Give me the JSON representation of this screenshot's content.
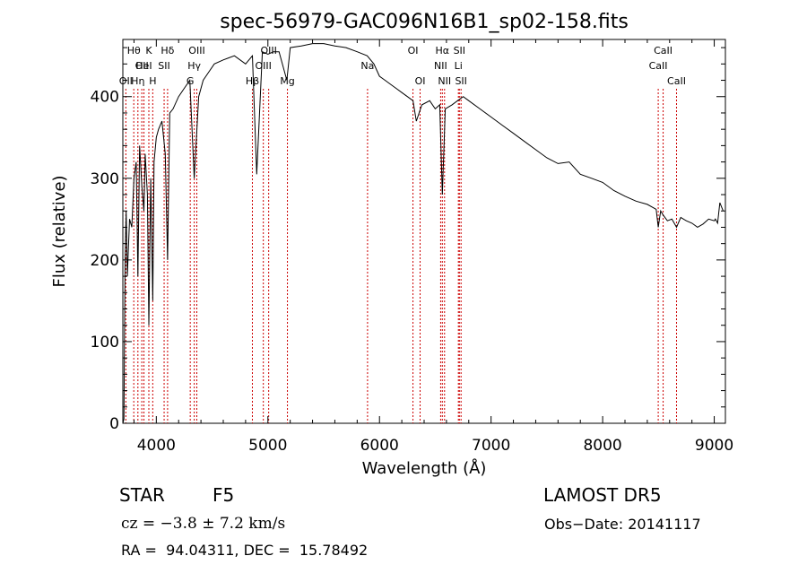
{
  "chart_data": {
    "type": "line",
    "title": "spec-56979-GAC096N16B1_sp02-158.fits",
    "xlabel": "Wavelength (Å)",
    "ylabel": "Flux (relative)",
    "xlim": [
      3700,
      9100
    ],
    "ylim": [
      0,
      470
    ],
    "xticks": [
      4000,
      5000,
      6000,
      7000,
      8000,
      9000
    ],
    "yticks": [
      0,
      100,
      200,
      300,
      400
    ],
    "x_tick_labels": [
      "4000",
      "5000",
      "6000",
      "7000",
      "8000",
      "9000"
    ],
    "y_tick_labels": [
      "0",
      "100",
      "200",
      "300",
      "400"
    ],
    "grid": false,
    "line_color": "#000000",
    "marker_color": "#cc0000",
    "series": [
      {
        "x": [
          3700,
          3710,
          3720,
          3730,
          3740,
          3760,
          3780,
          3800,
          3820,
          3835,
          3850,
          3870,
          3889,
          3900,
          3920,
          3933,
          3950,
          3968,
          3980,
          4000,
          4020,
          4050,
          4080,
          4101,
          4120,
          4150,
          4200,
          4250,
          4300,
          4340,
          4380,
          4420,
          4470,
          4520,
          4600,
          4700,
          4800,
          4861,
          4900,
          4950,
          5000,
          5050,
          5100,
          5170,
          5200,
          5300,
          5400,
          5500,
          5600,
          5700,
          5800,
          5890,
          5950,
          6000,
          6050,
          6100,
          6150,
          6200,
          6250,
          6300,
          6330,
          6380,
          6450,
          6500,
          6540,
          6563,
          6590,
          6650,
          6700,
          6750,
          6800,
          6900,
          7000,
          7100,
          7200,
          7300,
          7400,
          7500,
          7600,
          7700,
          7800,
          7900,
          8000,
          8100,
          8200,
          8300,
          8400,
          8480,
          8498,
          8520,
          8542,
          8580,
          8620,
          8662,
          8700,
          8750,
          8800,
          8850,
          8900,
          8950,
          9000,
          9010,
          9030,
          9050,
          9080
        ],
        "y": [
          0,
          5,
          200,
          260,
          180,
          250,
          240,
          300,
          320,
          180,
          340,
          290,
          260,
          330,
          280,
          120,
          300,
          150,
          320,
          350,
          360,
          370,
          330,
          200,
          380,
          385,
          400,
          410,
          420,
          300,
          400,
          420,
          430,
          440,
          445,
          450,
          440,
          450,
          305,
          455,
          452,
          455,
          455,
          420,
          460,
          462,
          465,
          465,
          462,
          460,
          455,
          450,
          440,
          425,
          420,
          415,
          410,
          405,
          400,
          395,
          370,
          390,
          395,
          385,
          390,
          280,
          385,
          390,
          395,
          400,
          395,
          385,
          375,
          365,
          355,
          345,
          335,
          325,
          318,
          320,
          305,
          300,
          295,
          285,
          278,
          272,
          268,
          262,
          240,
          260,
          255,
          248,
          250,
          240,
          252,
          248,
          245,
          240,
          244,
          250,
          248,
          250,
          245,
          270,
          260
        ]
      }
    ],
    "line_markers": [
      {
        "x": 3727,
        "label": "OII",
        "row": 2
      },
      {
        "x": 3798,
        "label": "Hθ",
        "row": 0
      },
      {
        "x": 3835,
        "label": "Hη",
        "row": 2
      },
      {
        "x": 3870,
        "label": "OII",
        "row": 1
      },
      {
        "x": 3889,
        "label": "HeI",
        "row": 1
      },
      {
        "x": 3933,
        "label": "K",
        "row": 0
      },
      {
        "x": 3968,
        "label": "H",
        "row": 2
      },
      {
        "x": 4070,
        "label": "SII",
        "row": 1
      },
      {
        "x": 4101,
        "label": "Hδ",
        "row": 0
      },
      {
        "x": 4304,
        "label": "G",
        "row": 2
      },
      {
        "x": 4340,
        "label": "Hγ",
        "row": 1
      },
      {
        "x": 4363,
        "label": "OIII",
        "row": 0
      },
      {
        "x": 4861,
        "label": "Hβ",
        "row": 2
      },
      {
        "x": 4959,
        "label": "OIII",
        "row": 1
      },
      {
        "x": 5007,
        "label": "OIII",
        "row": 0
      },
      {
        "x": 5175,
        "label": "Mg",
        "row": 2
      },
      {
        "x": 5893,
        "label": "Na",
        "row": 1
      },
      {
        "x": 6300,
        "label": "OI",
        "row": 0
      },
      {
        "x": 6364,
        "label": "OI",
        "row": 2
      },
      {
        "x": 6548,
        "label": "NII",
        "row": 1
      },
      {
        "x": 6563,
        "label": "Hα",
        "row": 0
      },
      {
        "x": 6583,
        "label": "NII",
        "row": 2
      },
      {
        "x": 6707,
        "label": "Li",
        "row": 1
      },
      {
        "x": 6716,
        "label": "SII",
        "row": 0
      },
      {
        "x": 6731,
        "label": "SII",
        "row": 2
      },
      {
        "x": 8498,
        "label": "CaII",
        "row": 1
      },
      {
        "x": 8542,
        "label": "CaII",
        "row": 0
      },
      {
        "x": 8662,
        "label": "CaII",
        "row": 2
      }
    ]
  },
  "info": {
    "object_class": "STAR",
    "subclass": "F5",
    "survey": "LAMOST DR5",
    "redshift": "cz = −3.8 ± 7.2 km/s",
    "obs_date": "Obs−Date: 20141117",
    "coords": "RA =  94.04311, DEC =  15.78492"
  }
}
